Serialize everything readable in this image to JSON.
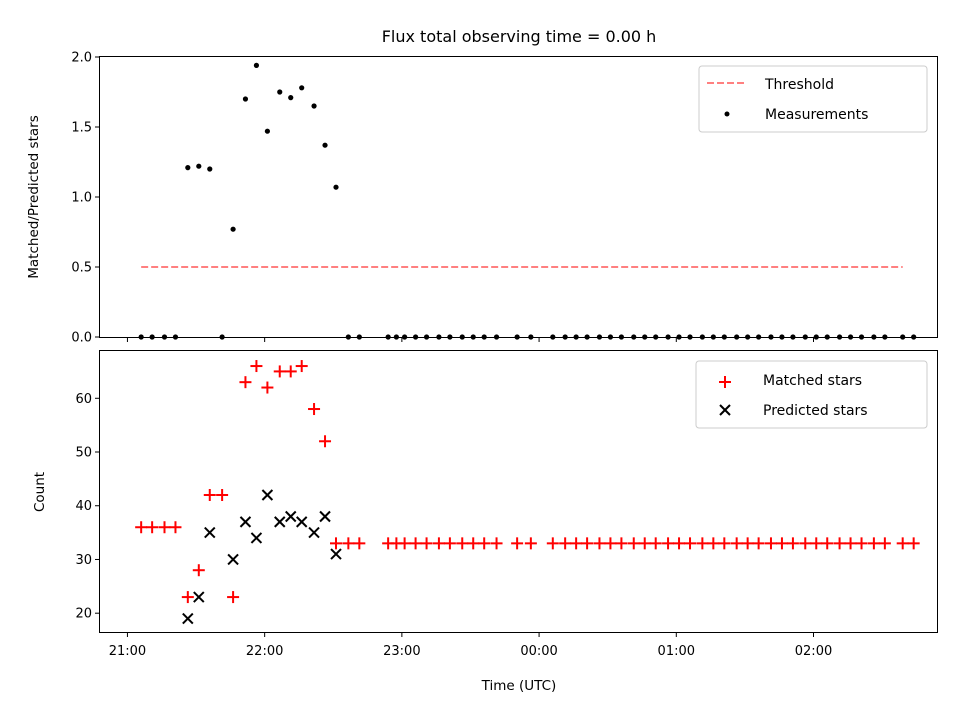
{
  "chart_data": [
    {
      "type": "scatter",
      "title": "Flux total observing time = 0.00 h",
      "ylabel": "Matched/Predicted stars",
      "ylim": [
        0,
        2.0
      ],
      "yticks": [
        "0.0",
        "0.5",
        "1.0",
        "1.5",
        "2.0"
      ],
      "xlim": [
        -0.2,
        5.9
      ],
      "legend_placement": "top-right",
      "series": [
        {
          "name": "Threshold",
          "style": "dashed-line",
          "color": "#ff8080",
          "x": [
            0.1,
            5.65
          ],
          "y": [
            0.5,
            0.5
          ]
        },
        {
          "name": "Measurements",
          "style": "dot",
          "color": "#000000",
          "x": [
            0.1,
            0.18,
            0.27,
            0.35,
            0.44,
            0.52,
            0.6,
            0.69,
            0.77,
            0.86,
            0.94,
            1.02,
            1.11,
            1.19,
            1.27,
            1.36,
            1.44,
            1.52,
            1.61,
            1.69,
            1.9,
            1.96,
            2.02,
            2.1,
            2.18,
            2.27,
            2.35,
            2.44,
            2.52,
            2.6,
            2.69,
            2.84,
            2.94,
            3.1,
            3.19,
            3.27,
            3.35,
            3.44,
            3.52,
            3.6,
            3.69,
            3.77,
            3.85,
            3.94,
            4.02,
            4.1,
            4.19,
            4.27,
            4.35,
            4.44,
            4.52,
            4.6,
            4.69,
            4.77,
            4.85,
            4.94,
            5.02,
            5.1,
            5.19,
            5.27,
            5.35,
            5.44,
            5.52,
            5.65,
            5.73
          ],
          "y": [
            0,
            0,
            0,
            0,
            1.21,
            1.22,
            1.2,
            0,
            0.77,
            1.7,
            1.94,
            1.47,
            1.75,
            1.71,
            1.78,
            1.65,
            1.37,
            1.07,
            0,
            0,
            0,
            0,
            0,
            0,
            0,
            0,
            0,
            0,
            0,
            0,
            0,
            0,
            0,
            0,
            0,
            0,
            0,
            0,
            0,
            0,
            0,
            0,
            0,
            0,
            0,
            0,
            0,
            0,
            0,
            0,
            0,
            0,
            0,
            0,
            0,
            0,
            0,
            0,
            0,
            0,
            0,
            0,
            0,
            0,
            0
          ]
        }
      ]
    },
    {
      "type": "scatter",
      "xlabel": "Time (UTC)",
      "ylabel": "Count",
      "ylim": [
        16.5,
        68.8
      ],
      "yticks": [
        "20",
        "30",
        "40",
        "50",
        "60"
      ],
      "xlim": [
        -0.2,
        5.9
      ],
      "xticks": [
        {
          "value": 0,
          "label": "21:00"
        },
        {
          "value": 1,
          "label": "22:00"
        },
        {
          "value": 2,
          "label": "23:00"
        },
        {
          "value": 3,
          "label": "00:00"
        },
        {
          "value": 4,
          "label": "01:00"
        },
        {
          "value": 5,
          "label": "02:00"
        }
      ],
      "legend_placement": "top-right",
      "series": [
        {
          "name": "Matched stars",
          "style": "plus",
          "color": "#ff0000",
          "x": [
            0.1,
            0.18,
            0.27,
            0.35,
            0.44,
            0.52,
            0.6,
            0.69,
            0.77,
            0.86,
            0.94,
            1.02,
            1.11,
            1.19,
            1.27,
            1.36,
            1.44,
            1.52,
            1.61,
            1.69,
            1.9,
            1.96,
            2.02,
            2.1,
            2.18,
            2.27,
            2.35,
            2.44,
            2.52,
            2.6,
            2.69,
            2.84,
            2.94,
            3.1,
            3.19,
            3.27,
            3.35,
            3.44,
            3.52,
            3.6,
            3.69,
            3.77,
            3.85,
            3.94,
            4.02,
            4.1,
            4.19,
            4.27,
            4.35,
            4.44,
            4.52,
            4.6,
            4.69,
            4.77,
            4.85,
            4.94,
            5.02,
            5.1,
            5.19,
            5.27,
            5.35,
            5.44,
            5.52,
            5.65,
            5.73
          ],
          "y": [
            36,
            36,
            36,
            36,
            23,
            28,
            42,
            42,
            23,
            63,
            66,
            62,
            65,
            65,
            66,
            58,
            52,
            33,
            33,
            33,
            33,
            33,
            33,
            33,
            33,
            33,
            33,
            33,
            33,
            33,
            33,
            33,
            33,
            33,
            33,
            33,
            33,
            33,
            33,
            33,
            33,
            33,
            33,
            33,
            33,
            33,
            33,
            33,
            33,
            33,
            33,
            33,
            33,
            33,
            33,
            33,
            33,
            33,
            33,
            33,
            33,
            33,
            33,
            33,
            33
          ]
        },
        {
          "name": "Predicted stars",
          "style": "x",
          "color": "#000000",
          "x": [
            0.44,
            0.52,
            0.6,
            0.77,
            0.86,
            0.94,
            1.02,
            1.11,
            1.19,
            1.27,
            1.36,
            1.44,
            1.52
          ],
          "y": [
            19,
            23,
            35,
            30,
            37,
            34,
            42,
            37,
            38,
            37,
            35,
            38,
            31
          ]
        }
      ]
    }
  ]
}
